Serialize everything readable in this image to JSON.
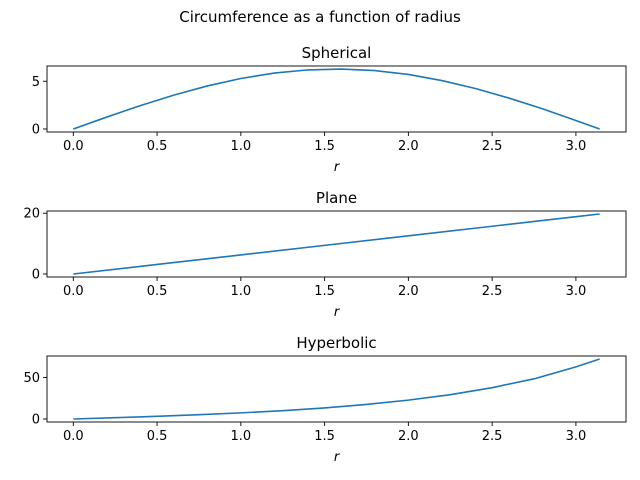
{
  "figure": {
    "suptitle": "Circumference as a function of radius"
  },
  "chart_data": [
    {
      "type": "line",
      "title": "Spherical",
      "xlabel": "r",
      "ylabel": "",
      "xlim": [
        -0.157,
        3.299
      ],
      "ylim": [
        -0.314,
        6.597
      ],
      "xticks": [
        0.0,
        0.5,
        1.0,
        1.5,
        2.0,
        2.5,
        3.0
      ],
      "xtick_labels": [
        "0.0",
        "0.5",
        "1.0",
        "1.5",
        "2.0",
        "2.5",
        "3.0"
      ],
      "yticks": [
        0,
        5
      ],
      "ytick_labels": [
        "0",
        "5"
      ],
      "grid": false,
      "color": "#1f77b4",
      "series": [
        {
          "x": [
            0.0,
            0.2,
            0.4,
            0.6,
            0.8,
            1.0,
            1.2,
            1.4,
            1.6,
            1.8,
            2.0,
            2.2,
            2.4,
            2.6,
            2.8,
            3.0,
            3.1416
          ],
          "y": [
            0.0,
            1.25,
            2.45,
            3.55,
            4.51,
            5.29,
            5.86,
            6.19,
            6.28,
            6.12,
            5.71,
            5.07,
            4.24,
            3.24,
            2.12,
            0.89,
            0.0
          ]
        }
      ]
    },
    {
      "type": "line",
      "title": "Plane",
      "xlabel": "r",
      "ylabel": "",
      "xlim": [
        -0.157,
        3.299
      ],
      "ylim": [
        -0.987,
        20.726
      ],
      "xticks": [
        0.0,
        0.5,
        1.0,
        1.5,
        2.0,
        2.5,
        3.0
      ],
      "xtick_labels": [
        "0.0",
        "0.5",
        "1.0",
        "1.5",
        "2.0",
        "2.5",
        "3.0"
      ],
      "yticks": [
        0,
        20
      ],
      "ytick_labels": [
        "0",
        "20"
      ],
      "grid": false,
      "color": "#1f77b4",
      "series": [
        {
          "x": [
            0.0,
            0.5,
            1.0,
            1.5,
            2.0,
            2.5,
            3.0,
            3.1416
          ],
          "y": [
            0.0,
            3.14,
            6.28,
            9.42,
            12.57,
            15.71,
            18.85,
            19.74
          ]
        }
      ]
    },
    {
      "type": "line",
      "title": "Hyperbolic",
      "xlabel": "r",
      "ylabel": "",
      "xlim": [
        -0.157,
        3.299
      ],
      "ylim": [
        -3.62,
        76.02
      ],
      "xticks": [
        0.0,
        0.5,
        1.0,
        1.5,
        2.0,
        2.5,
        3.0
      ],
      "xtick_labels": [
        "0.0",
        "0.5",
        "1.0",
        "1.5",
        "2.0",
        "2.5",
        "3.0"
      ],
      "yticks": [
        0,
        50
      ],
      "ytick_labels": [
        "0",
        "50"
      ],
      "grid": false,
      "color": "#1f77b4",
      "series": [
        {
          "x": [
            0.0,
            0.25,
            0.5,
            0.75,
            1.0,
            1.25,
            1.5,
            1.75,
            2.0,
            2.25,
            2.5,
            2.75,
            3.0,
            3.1416
          ],
          "y": [
            0.0,
            1.58,
            3.28,
            5.16,
            7.38,
            10.06,
            13.37,
            17.55,
            22.79,
            29.37,
            37.8,
            48.46,
            62.94,
            72.4
          ]
        }
      ]
    }
  ]
}
